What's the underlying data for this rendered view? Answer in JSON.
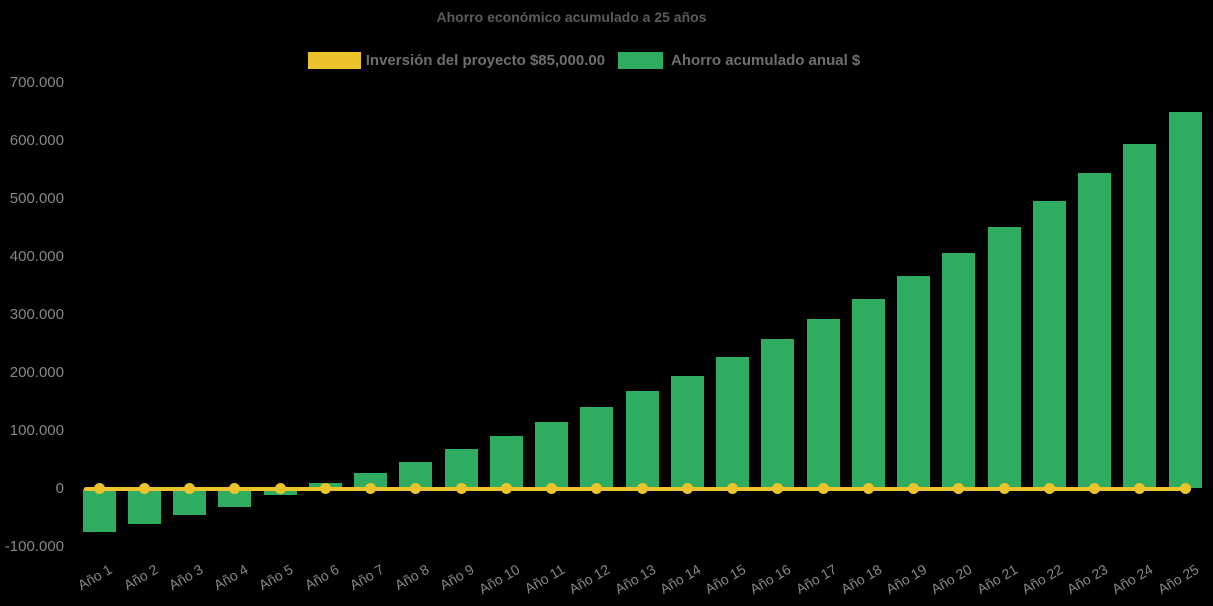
{
  "colors": {
    "background": "#000000",
    "title_text": "#5c5c5c",
    "legend_text": "#6e6e6e",
    "axis_label_text": "#878787",
    "investment_line": "#edc32b",
    "savings_bar": "#2ead60"
  },
  "chart_data": {
    "type": "bar",
    "title": "Ahorro económico acumulado a 25 años",
    "xlabel": "",
    "ylabel": "",
    "grid": false,
    "legend_position": "top",
    "background": "#000000",
    "x_label_rotation": -30,
    "ylim": [
      -100000,
      700000
    ],
    "yticks": [
      {
        "value": 700000,
        "label": "700.000"
      },
      {
        "value": 600000,
        "label": "600.000"
      },
      {
        "value": 500000,
        "label": "500.000"
      },
      {
        "value": 400000,
        "label": "400.000"
      },
      {
        "value": 300000,
        "label": "300.000"
      },
      {
        "value": 200000,
        "label": "200.000"
      },
      {
        "value": 100000,
        "label": "100.000"
      },
      {
        "value": 0,
        "label": "0"
      },
      {
        "value": -100000,
        "label": "-100.000"
      }
    ],
    "categories": [
      "Año 1",
      "Año 2",
      "Año 3",
      "Año 4",
      "Año 5",
      "Año 6",
      "Año 7",
      "Año 8",
      "Año 9",
      "Año 10",
      "Año 11",
      "Año 12",
      "Año 13",
      "Año 14",
      "Año 15",
      "Año 16",
      "Año 17",
      "Año 18",
      "Año 19",
      "Año 20",
      "Año 21",
      "Año 22",
      "Año 23",
      "Año 24",
      "Año 25"
    ],
    "series": [
      {
        "name": "Inversión del proyecto $85,000.00",
        "type": "line",
        "color": "#edc32b",
        "marker": "circle",
        "values": [
          0,
          0,
          0,
          0,
          0,
          0,
          0,
          0,
          0,
          0,
          0,
          0,
          0,
          0,
          0,
          0,
          0,
          0,
          0,
          0,
          0,
          0,
          0,
          0,
          0
        ]
      },
      {
        "name": "Ahorro acumulado anual $",
        "type": "bar",
        "color": "#2ead60",
        "values": [
          -75000,
          -61000,
          -46000,
          -32000,
          -12000,
          9000,
          27000,
          46000,
          68000,
          90000,
          114000,
          140000,
          168000,
          194000,
          227000,
          258000,
          292000,
          327000,
          366000,
          406000,
          451000,
          496000,
          544000,
          594000,
          649000
        ]
      }
    ]
  }
}
